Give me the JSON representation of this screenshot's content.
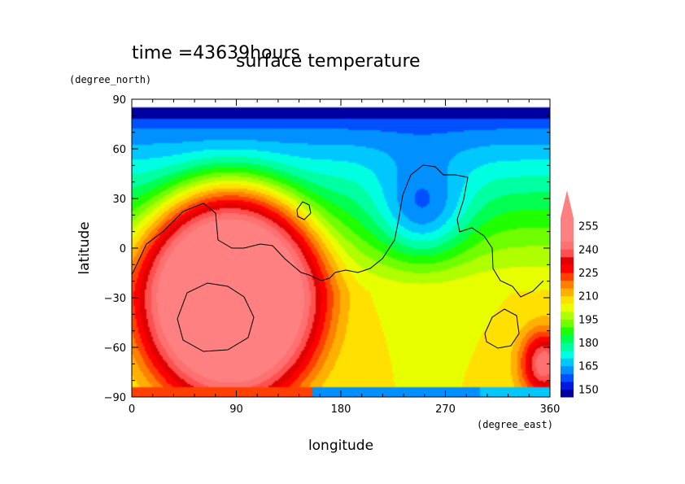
{
  "chart_data": {
    "type": "heatmap",
    "title": "surface temperature",
    "time_label": "time =43639hours",
    "xlabel": "longitude",
    "ylabel": "latitude",
    "xunit": "(degree_east)",
    "yunit": "(degree_north)",
    "xlim": [
      0,
      360
    ],
    "ylim": [
      -90,
      90
    ],
    "xticks": [
      "0",
      "90",
      "180",
      "270",
      "360"
    ],
    "yticks": [
      "90",
      "60",
      "30",
      "0",
      "−30",
      "−60",
      "−90"
    ],
    "colorbar": {
      "levels": [
        145,
        150,
        155,
        160,
        165,
        170,
        175,
        180,
        185,
        190,
        195,
        200,
        205,
        210,
        215,
        220,
        225,
        230,
        235,
        240,
        245,
        250,
        255,
        260
      ],
      "labels": [
        "150",
        "165",
        "180",
        "195",
        "210",
        "225",
        "240",
        "255"
      ],
      "colors": [
        "#0000a0",
        "#0018e0",
        "#0050ff",
        "#0090ff",
        "#00c8ff",
        "#00ffe0",
        "#00ffa0",
        "#00ff50",
        "#20ff00",
        "#70ff00",
        "#b0ff00",
        "#e8ff00",
        "#ffe000",
        "#ffb000",
        "#ff8000",
        "#ff4000",
        "#ff0000",
        "#e00000",
        "#ff5050",
        "#ff7070",
        "#ff8080",
        "#ff8080",
        "#ff8080"
      ],
      "extend_top_color": "#ff8080"
    },
    "field_estimate": {
      "north_cap_lat": 78,
      "north_cap_value": 148,
      "warm_center": {
        "lon": 85,
        "lat": -30,
        "value": 262
      },
      "warm_extent_lon_deg": 80,
      "warm_extent_lat_deg": 65,
      "south_margin_lat": -84,
      "south_margin_value": 160
    }
  }
}
